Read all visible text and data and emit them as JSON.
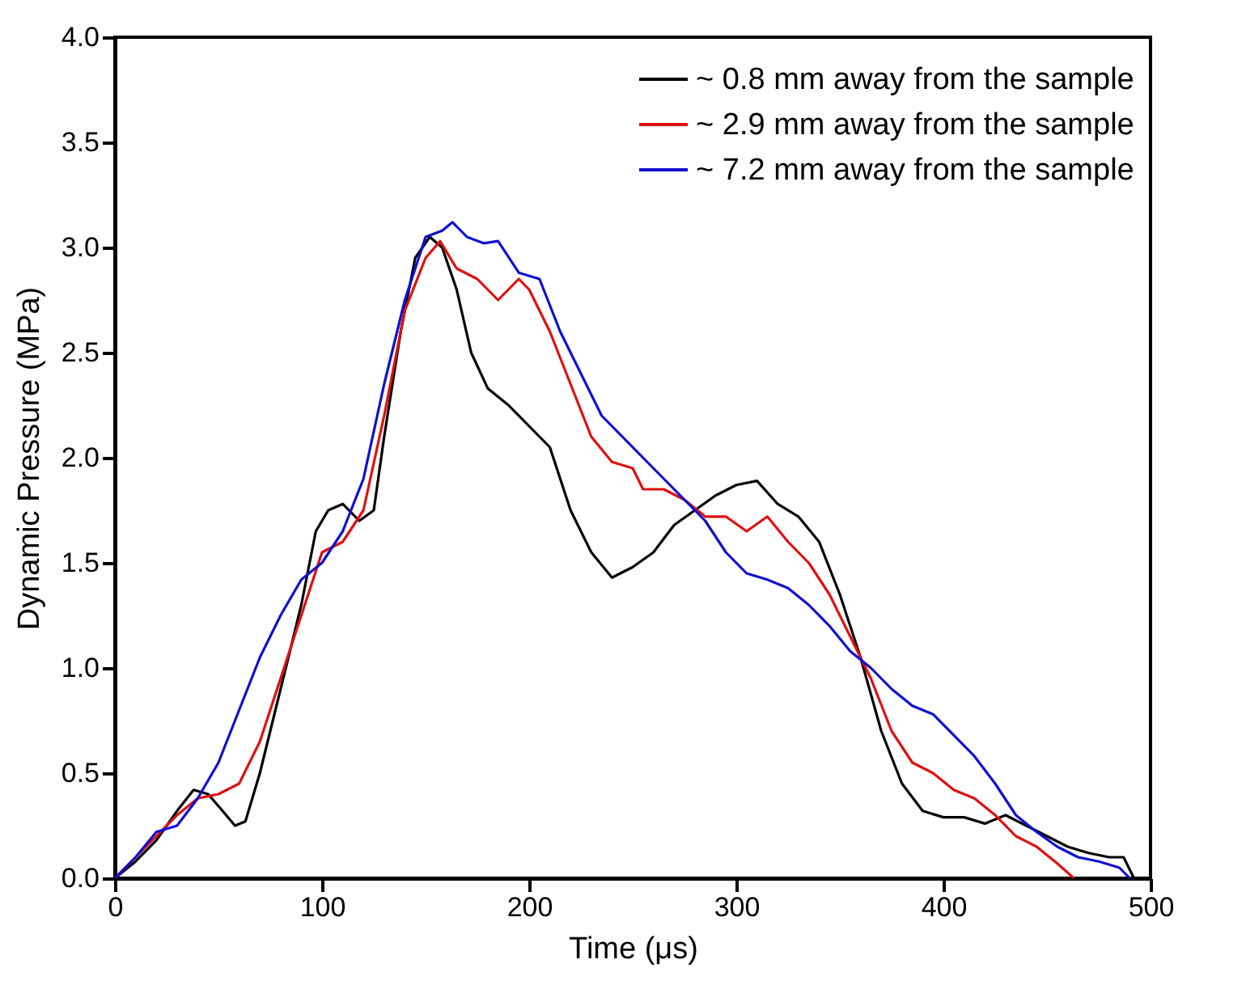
{
  "chart_data": {
    "type": "line",
    "xlabel": "Time (μs)",
    "ylabel": "Dynamic Pressure (MPa)",
    "xlim": [
      0,
      500
    ],
    "xticks": [
      0,
      100,
      200,
      300,
      400,
      500
    ],
    "ylim": [
      0,
      4
    ],
    "yticks": [
      {
        "value": 0,
        "label": "0.0"
      },
      0.5,
      {
        "value": 1,
        "label": "1.0"
      },
      1.5,
      {
        "value": 2,
        "label": "2.0"
      },
      2.5,
      {
        "value": 3,
        "label": "3.0"
      },
      3.5,
      {
        "value": 4,
        "label": "4.0"
      }
    ],
    "grid": false,
    "legend": "top right",
    "marker": "none",
    "line_style": "solid",
    "series": [
      {
        "name": "~ 0.8 mm away from the sample",
        "color": "#000000",
        "x": [
          0,
          10,
          20,
          30,
          38,
          45,
          52,
          58,
          63,
          70,
          80,
          90,
          97,
          103,
          110,
          118,
          125,
          130,
          138,
          145,
          152,
          158,
          165,
          172,
          180,
          190,
          200,
          210,
          220,
          230,
          240,
          250,
          260,
          270,
          280,
          290,
          300,
          310,
          320,
          330,
          340,
          350,
          360,
          370,
          380,
          390,
          400,
          410,
          420,
          430,
          440,
          450,
          460,
          470,
          480,
          487,
          492
        ],
        "values": [
          0,
          0.08,
          0.18,
          0.32,
          0.42,
          0.4,
          0.32,
          0.25,
          0.27,
          0.5,
          0.9,
          1.3,
          1.65,
          1.75,
          1.78,
          1.7,
          1.75,
          2.1,
          2.6,
          2.95,
          3.05,
          3.0,
          2.8,
          2.5,
          2.33,
          2.25,
          2.15,
          2.05,
          1.75,
          1.55,
          1.43,
          1.48,
          1.55,
          1.68,
          1.75,
          1.82,
          1.87,
          1.89,
          1.78,
          1.72,
          1.6,
          1.35,
          1.05,
          0.7,
          0.45,
          0.32,
          0.29,
          0.29,
          0.26,
          0.3,
          0.25,
          0.2,
          0.15,
          0.12,
          0.1,
          0.1,
          0
        ]
      },
      {
        "name": "~ 2.9 mm away from the sample",
        "color": "#e01010",
        "x": [
          0,
          10,
          20,
          30,
          40,
          50,
          60,
          70,
          80,
          90,
          100,
          110,
          120,
          130,
          140,
          150,
          157,
          165,
          175,
          185,
          195,
          200,
          210,
          220,
          230,
          240,
          250,
          255,
          265,
          275,
          285,
          295,
          305,
          315,
          325,
          335,
          345,
          355,
          365,
          375,
          385,
          395,
          405,
          415,
          425,
          435,
          445,
          455,
          463
        ],
        "values": [
          0,
          0.1,
          0.2,
          0.3,
          0.38,
          0.4,
          0.45,
          0.65,
          0.95,
          1.25,
          1.55,
          1.6,
          1.75,
          2.2,
          2.7,
          2.95,
          3.03,
          2.9,
          2.85,
          2.75,
          2.85,
          2.8,
          2.6,
          2.35,
          2.1,
          1.98,
          1.95,
          1.85,
          1.85,
          1.8,
          1.72,
          1.72,
          1.65,
          1.72,
          1.6,
          1.5,
          1.35,
          1.15,
          0.95,
          0.7,
          0.55,
          0.5,
          0.42,
          0.38,
          0.3,
          0.2,
          0.15,
          0.07,
          0
        ]
      },
      {
        "name": "~ 7.2 mm away from the sample",
        "color": "#1010d0",
        "x": [
          0,
          10,
          20,
          30,
          40,
          50,
          60,
          70,
          80,
          90,
          100,
          110,
          120,
          130,
          140,
          150,
          158,
          163,
          170,
          178,
          185,
          195,
          205,
          215,
          225,
          235,
          245,
          255,
          265,
          275,
          285,
          295,
          305,
          315,
          325,
          335,
          345,
          355,
          365,
          375,
          385,
          395,
          405,
          415,
          425,
          435,
          445,
          455,
          465,
          475,
          485,
          490
        ],
        "values": [
          0,
          0.1,
          0.22,
          0.25,
          0.38,
          0.55,
          0.8,
          1.05,
          1.25,
          1.42,
          1.5,
          1.65,
          1.9,
          2.35,
          2.75,
          3.05,
          3.08,
          3.12,
          3.05,
          3.02,
          3.03,
          2.88,
          2.85,
          2.6,
          2.4,
          2.2,
          2.1,
          2.0,
          1.9,
          1.8,
          1.7,
          1.55,
          1.45,
          1.42,
          1.38,
          1.3,
          1.2,
          1.08,
          1.0,
          0.9,
          0.82,
          0.78,
          0.68,
          0.58,
          0.45,
          0.3,
          0.22,
          0.15,
          0.1,
          0.08,
          0.05,
          0
        ]
      }
    ]
  }
}
